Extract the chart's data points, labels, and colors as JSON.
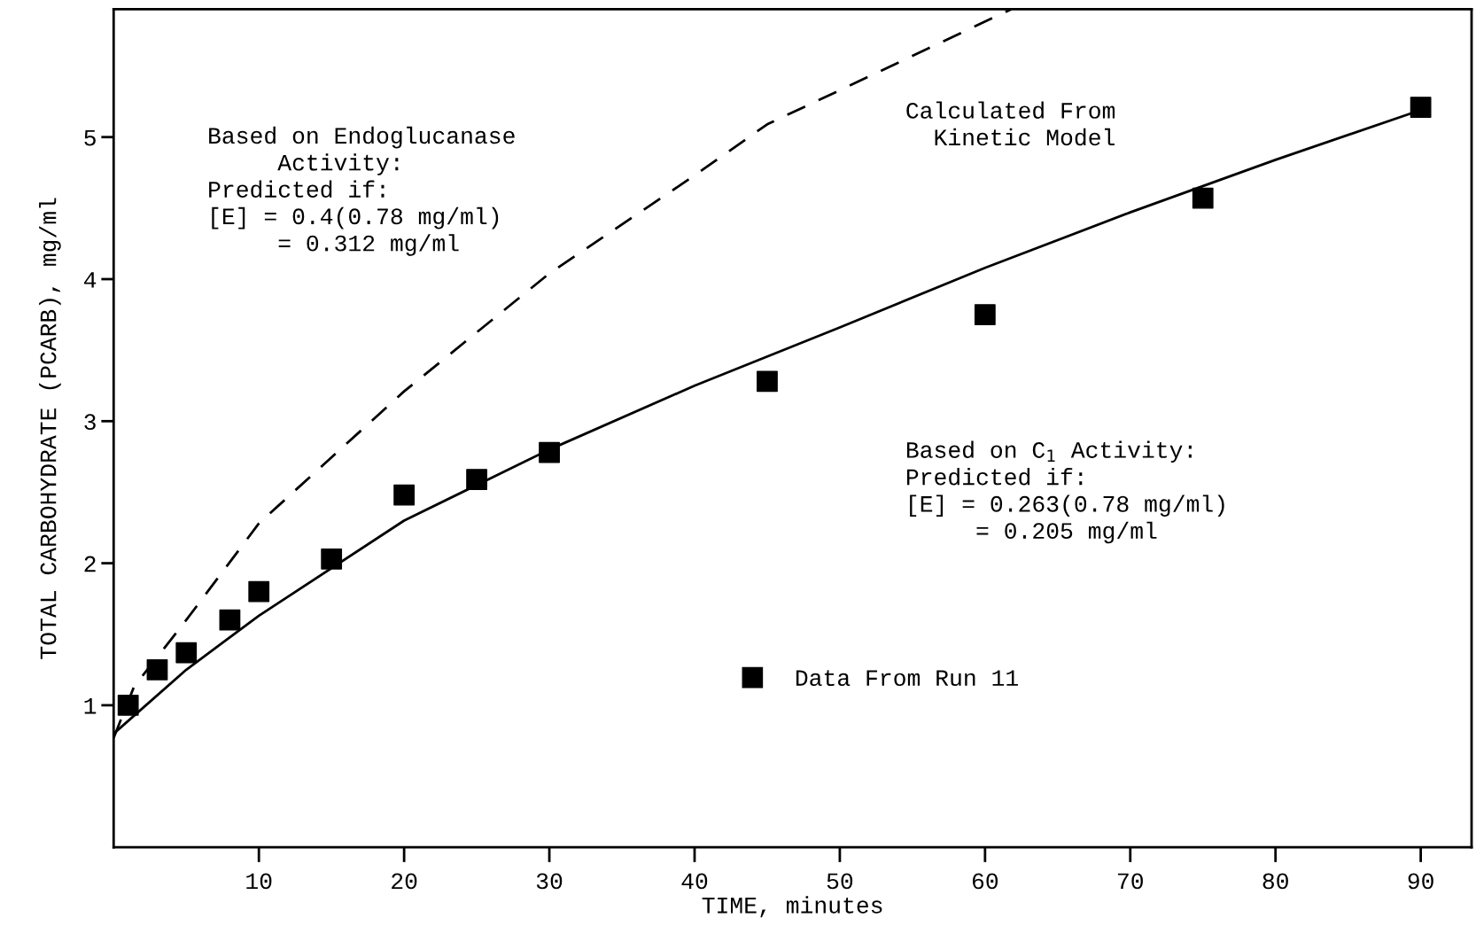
{
  "chart_data": {
    "type": "scatter",
    "xlabel": "TIME, minutes",
    "ylabel": "TOTAL CARBOHYDRATE (PCARB), mg/ml",
    "xlim": [
      0,
      93.5
    ],
    "ylim": [
      0,
      5.9
    ],
    "xticks": [
      10,
      20,
      30,
      40,
      50,
      60,
      70,
      80,
      90
    ],
    "yticks": [
      1,
      2,
      3,
      4,
      5
    ],
    "grid": false,
    "legend": "bottom",
    "marker": "square",
    "series": [
      {
        "name": "Data From Run 11",
        "color": "#000000",
        "x": [
          1,
          3,
          5,
          8,
          10,
          15,
          20,
          25,
          30,
          45,
          60,
          75,
          90
        ],
        "values": [
          1.0,
          1.25,
          1.37,
          1.6,
          1.8,
          2.03,
          2.48,
          2.59,
          2.78,
          3.28,
          3.75,
          4.57,
          5.21
        ]
      },
      {
        "type": "line",
        "color": "#000000",
        "line_style": "solid",
        "marker": "none",
        "x": [
          0,
          5,
          10,
          20,
          30,
          40,
          50,
          60,
          70,
          80,
          90
        ],
        "values": [
          0.8,
          1.25,
          1.63,
          2.3,
          2.8,
          3.25,
          3.66,
          4.08,
          4.47,
          4.84,
          5.19
        ]
      },
      {
        "type": "line",
        "color": "#000000",
        "line_style": "dashed",
        "marker": "none",
        "x": [
          0,
          1.4,
          5,
          10,
          20,
          30,
          40,
          45,
          50,
          61.8
        ],
        "values": [
          0.77,
          1.13,
          1.6,
          2.28,
          3.21,
          4.04,
          4.73,
          5.09,
          5.33,
          5.9
        ]
      }
    ],
    "annotations": [
      "Based on Endoglucanase\n     Activity:\nPredicted if:\n[E] = 0.4(0.78 mg/ml)\n     = 0.312 mg/ml",
      "Calculated From\n  Kinetic Model",
      "Based on C$_{1}$ Activity:\nPredicted if:\n[E] = 0.263(0.78 mg/ml)\n     = 0.205 mg/ml"
    ]
  }
}
